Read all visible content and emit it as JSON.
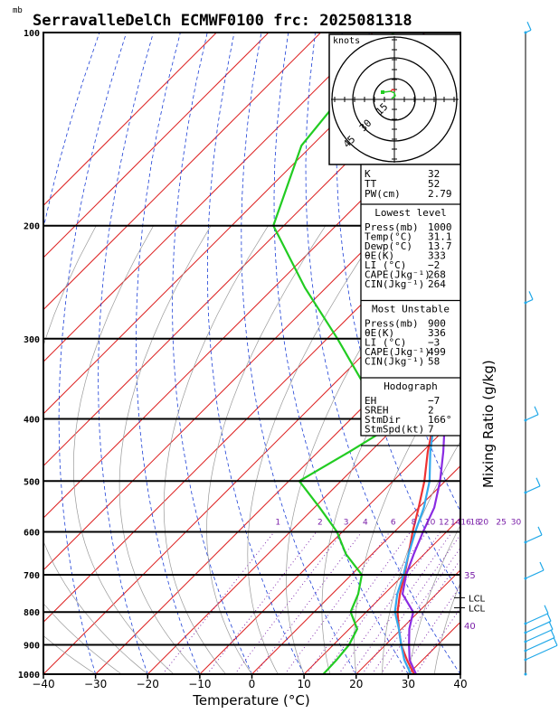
{
  "title": "SerravalleDelCh ECMWF0100 frc: 2025081318",
  "pressure_unit": "mb",
  "colors": {
    "temperature": "#ee3333",
    "dewpoint": "#22cc22",
    "parcel": "#8a2be2",
    "wetbulb": "#33aaee",
    "isotherm": "#dd2222",
    "dry_adiabat": "#1c3fd6",
    "mixing_ratio": "#7a1fa8",
    "wind_barb": "#20a8e8"
  },
  "chart_data": {
    "type": "line",
    "xlabel": "Temperature (°C)",
    "y2label": "Mixing Ratio (g/kg)",
    "xlim": [
      -40,
      40
    ],
    "ylim_mb": [
      1000,
      100
    ],
    "y_log_scale": true,
    "skew": true,
    "x_ticks": [
      "−40",
      "−30",
      "−20",
      "−10",
      "0",
      "10",
      "20",
      "30",
      "40"
    ],
    "x_tick_values": [
      -40,
      -30,
      -20,
      -10,
      0,
      10,
      20,
      30,
      40
    ],
    "pressure_ticks": [
      1000,
      900,
      800,
      700,
      600,
      500,
      400,
      300,
      200,
      100
    ],
    "series": [
      {
        "key": "temperature",
        "points": [
          [
            1000,
            31.1
          ],
          [
            950,
            27
          ],
          [
            900,
            23
          ],
          [
            850,
            19.5
          ],
          [
            800,
            16
          ],
          [
            750,
            13
          ],
          [
            700,
            10.2
          ],
          [
            650,
            7
          ],
          [
            600,
            3.5
          ],
          [
            550,
            0
          ],
          [
            500,
            -4
          ],
          [
            450,
            -9
          ],
          [
            400,
            -14
          ],
          [
            350,
            -22
          ],
          [
            300,
            -30
          ],
          [
            250,
            -40
          ],
          [
            200,
            -52
          ],
          [
            150,
            -60
          ],
          [
            100,
            -65
          ]
        ]
      },
      {
        "key": "dewpoint",
        "points": [
          [
            1000,
            13.7
          ],
          [
            950,
            13.5
          ],
          [
            900,
            13
          ],
          [
            850,
            11.5
          ],
          [
            800,
            7
          ],
          [
            750,
            5
          ],
          [
            700,
            2
          ],
          [
            650,
            -5
          ],
          [
            600,
            -11
          ],
          [
            550,
            -19
          ],
          [
            500,
            -28
          ],
          [
            450,
            -24
          ],
          [
            400,
            -20
          ],
          [
            350,
            -35
          ],
          [
            300,
            -48
          ],
          [
            250,
            -64
          ],
          [
            200,
            -82
          ],
          [
            150,
            -92
          ],
          [
            100,
            -96
          ]
        ]
      },
      {
        "key": "parcel",
        "points": [
          [
            1000,
            31.5
          ],
          [
            950,
            27.5
          ],
          [
            900,
            24.5
          ],
          [
            850,
            21.5
          ],
          [
            800,
            19
          ],
          [
            750,
            13.5
          ],
          [
            700,
            10.5
          ],
          [
            650,
            8
          ],
          [
            600,
            5.5
          ],
          [
            550,
            3
          ],
          [
            500,
            -1
          ],
          [
            450,
            -6
          ],
          [
            400,
            -12
          ],
          [
            350,
            -19
          ],
          [
            300,
            -28
          ],
          [
            250,
            -38
          ],
          [
            200,
            -50
          ],
          [
            150,
            -63
          ]
        ]
      },
      {
        "key": "wetbulb",
        "points": [
          [
            1000,
            30.5
          ],
          [
            950,
            26.5
          ],
          [
            900,
            23
          ],
          [
            850,
            19.5
          ],
          [
            800,
            15.5
          ],
          [
            750,
            12.5
          ],
          [
            700,
            10
          ],
          [
            650,
            7
          ],
          [
            600,
            4
          ],
          [
            550,
            1
          ],
          [
            500,
            -3
          ],
          [
            450,
            -8.5
          ],
          [
            400,
            -14
          ],
          [
            350,
            -21
          ],
          [
            300,
            -30
          ],
          [
            250,
            -41
          ],
          [
            200,
            -53
          ],
          [
            150,
            -65
          ]
        ]
      }
    ],
    "mixing_ratio_labels": [
      "1",
      "2",
      "3",
      "4",
      "6",
      "8",
      "10",
      "12",
      "14",
      "16",
      "18",
      "20",
      "25",
      "30"
    ],
    "mixing_ratio_values": [
      1,
      2,
      3,
      4,
      6,
      8,
      10,
      12,
      14,
      16,
      18,
      20,
      25,
      30
    ],
    "mixing_ratio_label_mb": 590,
    "wetbulb_labels": [
      {
        "text": "35",
        "mb": 700
      },
      {
        "text": "40",
        "mb": 840
      }
    ],
    "lcl_labels": [
      {
        "text": "LCL",
        "mb": 760
      },
      {
        "text": "LCL",
        "mb": 788
      }
    ]
  },
  "hodograph": {
    "unit_label": "knots",
    "ring_labels": [
      "15",
      "30",
      "45"
    ]
  },
  "indices": {
    "top": [
      {
        "label": "K",
        "value": "32"
      },
      {
        "label": "TT",
        "value": "52"
      },
      {
        "label": "PW(cm)",
        "value": "2.79"
      }
    ],
    "lowest_level": {
      "title": "Lowest level",
      "rows": [
        {
          "label": "Press(mb)",
          "value": "1000"
        },
        {
          "label": "Temp(°C)",
          "value": "31.1"
        },
        {
          "label": "Dewp(°C)",
          "value": "13.7"
        },
        {
          "label": "θE(K)",
          "value": "333"
        },
        {
          "label": "LI (°C)",
          "value": "−2"
        },
        {
          "label": "CAPE(Jkg⁻¹)",
          "value": "268"
        },
        {
          "label": "CIN(Jkg⁻¹)",
          "value": "264"
        }
      ]
    },
    "most_unstable": {
      "title": "Most Unstable",
      "rows": [
        {
          "label": "Press(mb)",
          "value": "900"
        },
        {
          "label": "θE(K)",
          "value": "336"
        },
        {
          "label": "LI (°C)",
          "value": "−3"
        },
        {
          "label": "CAPE(Jkg⁻¹)",
          "value": "499"
        },
        {
          "label": "CIN(Jkg⁻¹)",
          "value": "58"
        }
      ]
    },
    "hodograph_box": {
      "title": "Hodograph",
      "rows": [
        {
          "label": "EH",
          "value": "−7"
        },
        {
          "label": "SREH",
          "value": "2"
        },
        {
          "label": "StmDir",
          "value": "166°"
        },
        {
          "label": "StmSpd(kt)",
          "value": "7"
        }
      ]
    }
  }
}
